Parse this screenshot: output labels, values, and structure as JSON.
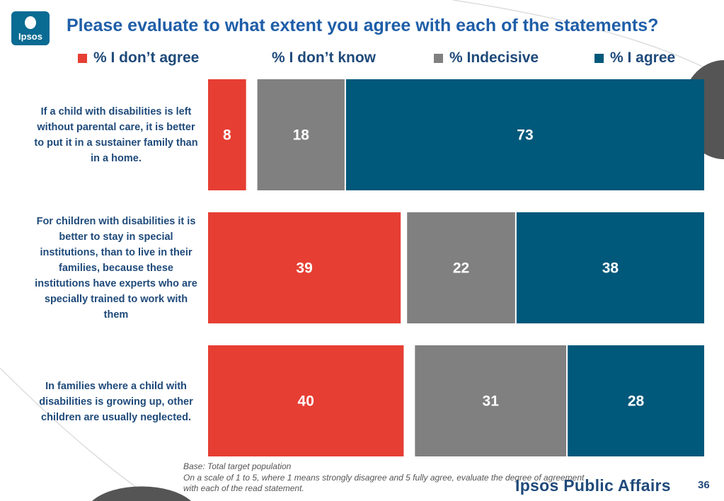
{
  "header": {
    "logo_text": "Ipsos",
    "title": "Please evaluate to what extent you agree with each of the statements?"
  },
  "colors": {
    "disagree": "#e63e33",
    "dont_know": "#ffffff",
    "indecisive": "#808080",
    "agree": "#00587a"
  },
  "chart_data": {
    "type": "bar",
    "orientation": "horizontal-stacked",
    "title": "Please evaluate to what extent you agree with each of the statements?",
    "categories": [
      "If a child with disabilities is left without parental care, it is better to put it in a sustainer family than in a home.",
      "For children with disabilities it is better to stay in special institutions, than to live in their families, because these institutions have experts who are specially trained to work with them",
      "In families where a child with disabilities is growing up, other children are usually neglected."
    ],
    "series": [
      {
        "name": "% I don’t agree",
        "values": [
          8,
          39,
          40
        ]
      },
      {
        "name": "% I don’t know",
        "values": [
          2,
          1,
          2
        ]
      },
      {
        "name": "% Indecisive",
        "values": [
          18,
          22,
          31
        ]
      },
      {
        "name": "% I agree",
        "values": [
          73,
          38,
          28
        ]
      }
    ],
    "data_labels": [
      [
        "8",
        "",
        "18",
        "73"
      ],
      [
        "39",
        "",
        "22",
        "38"
      ],
      [
        "40",
        "",
        "31",
        "28"
      ]
    ],
    "legend": [
      "% I don’t agree",
      "% I don’t know",
      "% Indecisive",
      "% I agree"
    ],
    "legend_position": "top",
    "grid": false
  },
  "footnotes": {
    "base": "Base: Total target population",
    "scale_line1": "On a scale of 1 to 5, where 1 means strongly disagree and 5 fully agree, evaluate the degree of agreement",
    "scale_line2": "with each of the read statement."
  },
  "footer": {
    "brand": "Ipsos Public Affairs",
    "page_number": "36"
  }
}
